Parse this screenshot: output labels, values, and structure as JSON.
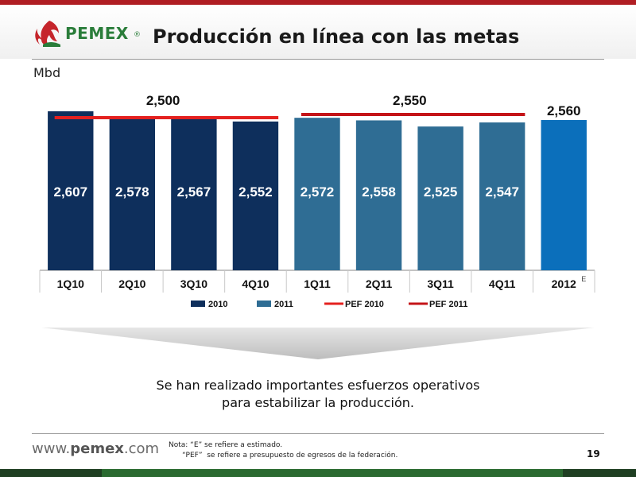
{
  "header": {
    "title": "Producción en línea con las metas",
    "logo_text": "PEMEX",
    "logo_mark": "®"
  },
  "unit_label": "Mbd",
  "chart_data": {
    "type": "bar",
    "categories": [
      "1Q10",
      "2Q10",
      "3Q10",
      "4Q10",
      "1Q11",
      "2Q11",
      "3Q11",
      "4Q11",
      "2012"
    ],
    "category_superscripts": [
      "",
      "",
      "",
      "",
      "",
      "",
      "",
      "",
      "E"
    ],
    "values": [
      2607,
      2578,
      2567,
      2552,
      2572,
      2558,
      2525,
      2547,
      2560
    ],
    "value_labels": [
      "2,607",
      "2,578",
      "2,567",
      "2,552",
      "2,572",
      "2,558",
      "2,525",
      "2,547",
      "2,560"
    ],
    "bar_groups": [
      "2010",
      "2010",
      "2010",
      "2010",
      "2011",
      "2011",
      "2011",
      "2011",
      "2012"
    ],
    "colors": {
      "2010": "#0e2f5c",
      "2011": "#2f6d94",
      "2012": "#0b6fbb",
      "PEF 2010": "#e4211f",
      "PEF 2011": "#c41418"
    },
    "targets": [
      {
        "name": "PEF 2010",
        "value": 2500,
        "label": "2,500",
        "from": "1Q10",
        "to": "4Q10"
      },
      {
        "name": "PEF 2011",
        "value": 2550,
        "label": "2,550",
        "from": "1Q11",
        "to": "4Q11"
      }
    ],
    "legend": [
      "2010",
      "2011",
      "PEF 2010",
      "PEF 2011"
    ],
    "legend_position": "bottom",
    "grid": false
  },
  "message": {
    "line1": "Se han realizado importantes esfuerzos operativos",
    "line2": "para estabilizar la producción."
  },
  "footer": {
    "url_prefix": "www.",
    "url_brand": "pemex",
    "url_suffix": ".com",
    "note_line1": "Nota: “E” se refiere a estimado.",
    "note_line2": "      “PEF”  se refiere a presupuesto de egresos de la federación.",
    "page_number": "19"
  }
}
